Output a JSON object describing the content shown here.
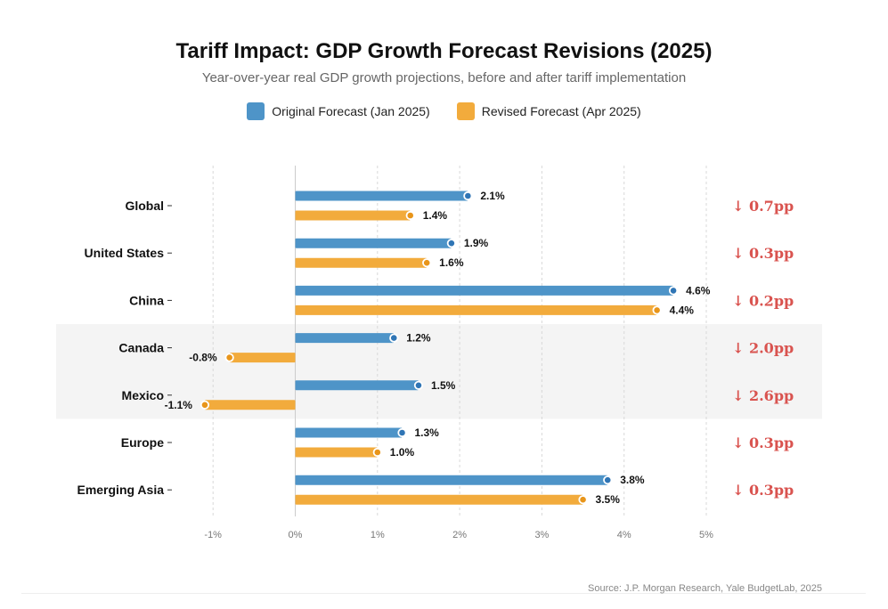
{
  "title": "Tariff Impact: GDP Growth Forecast Revisions (2025)",
  "subtitle": "Year-over-year real GDP growth projections, before and after tariff implementation",
  "legend": [
    {
      "label": "Original Forecast (Jan 2025)",
      "color": "#4e94c8"
    },
    {
      "label": "Revised Forecast (Apr 2025)",
      "color": "#f2ab3c"
    }
  ],
  "source": "Source: J.P. Morgan Research, Yale BudgetLab, 2025",
  "colors": {
    "original": "#4e94c8",
    "original_dot": "#2f75b5",
    "revised": "#f2ab3c",
    "revised_dot": "#e8951a",
    "delta": "#d9534f",
    "highlight": "#f4f4f4",
    "grid": "#d8d8d8"
  },
  "chart_data": {
    "type": "bar",
    "orientation": "horizontal",
    "categories": [
      "Global",
      "United States",
      "China",
      "Canada",
      "Mexico",
      "Europe",
      "Emerging Asia"
    ],
    "series": [
      {
        "name": "Original Forecast (Jan 2025)",
        "values": [
          2.1,
          1.9,
          4.6,
          1.2,
          1.5,
          1.3,
          3.8
        ],
        "labels": [
          "2.1%",
          "1.9%",
          "4.6%",
          "1.2%",
          "1.5%",
          "1.3%",
          "3.8%"
        ]
      },
      {
        "name": "Revised Forecast (Apr 2025)",
        "values": [
          1.4,
          1.6,
          4.4,
          -0.8,
          -1.1,
          1.0,
          3.5
        ],
        "labels": [
          "1.4%",
          "1.6%",
          "4.4%",
          "-0.8%",
          "-1.1%",
          "1.0%",
          "3.5%"
        ]
      }
    ],
    "deltas": [
      "↓ 0.7pp",
      "↓ 0.3pp",
      "↓ 0.2pp",
      "↓ 2.0pp",
      "↓ 2.6pp",
      "↓ 0.3pp",
      "↓ 0.3pp"
    ],
    "highlighted_categories": [
      "Canada",
      "Mexico"
    ],
    "xlim": [
      -1,
      5
    ],
    "xticks": [
      -1,
      0,
      1,
      2,
      3,
      4,
      5
    ],
    "xtick_labels": [
      "-1%",
      "0%",
      "1%",
      "2%",
      "3%",
      "4%",
      "5%"
    ],
    "grid": "vertical dashed",
    "legend_position": "top-center"
  }
}
